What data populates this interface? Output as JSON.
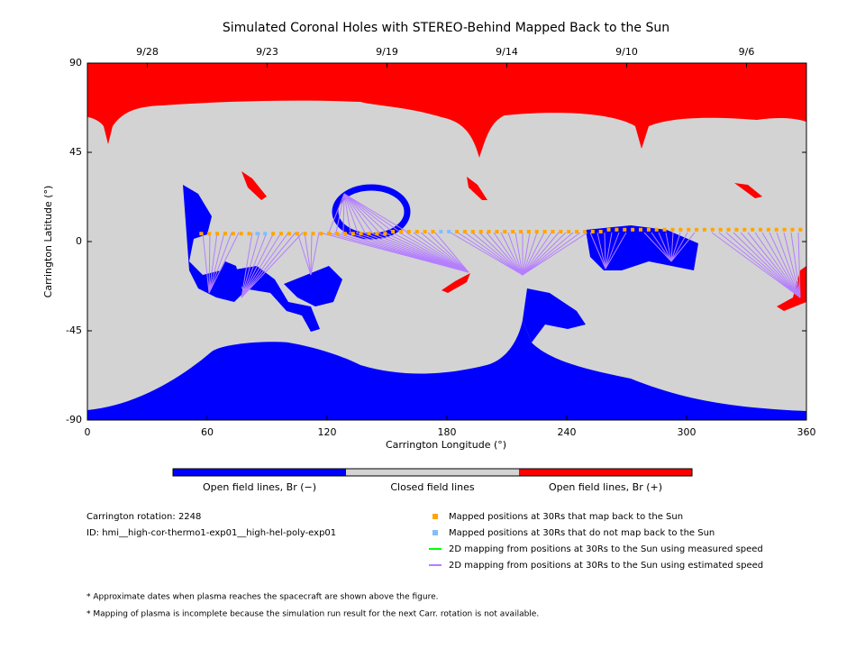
{
  "chart_data": {
    "type": "map",
    "title": "Simulated Coronal Holes with STEREO-Behind Mapped Back to the Sun",
    "xlabel": "Carrington Longitude (°)",
    "ylabel": "Carrington Latitude (°)",
    "xlim": [
      0,
      360
    ],
    "ylim": [
      -90,
      90
    ],
    "xticks": [
      0,
      60,
      120,
      180,
      240,
      300,
      360
    ],
    "yticks": [
      -90,
      -45,
      0,
      45,
      90
    ],
    "top_ticks": [
      {
        "value": 30,
        "label": "9/28"
      },
      {
        "value": 90,
        "label": "9/23"
      },
      {
        "value": 150,
        "label": "9/19"
      },
      {
        "value": 210,
        "label": "9/14"
      },
      {
        "value": 270,
        "label": "9/10"
      },
      {
        "value": 330,
        "label": "9/6"
      }
    ],
    "series": [
      {
        "name": "Mapped positions at 30Rs that map back to the Sun",
        "color": "#ffa500",
        "x": [
          57,
          61,
          65,
          69,
          73,
          77,
          81,
          93,
          97,
          101,
          105,
          109,
          113,
          117,
          121,
          125,
          129,
          133,
          137,
          141,
          145,
          149,
          153,
          157,
          161,
          165,
          169,
          173,
          185,
          189,
          193,
          197,
          201,
          205,
          209,
          213,
          217,
          221,
          225,
          229,
          233,
          237,
          241,
          245,
          249,
          253,
          257,
          261,
          265,
          269,
          273,
          277,
          281,
          285,
          289,
          293,
          297,
          301,
          305,
          309,
          313,
          317,
          321,
          325,
          329,
          333,
          337,
          341,
          345,
          349,
          353,
          357
        ],
        "values": [
          4,
          4,
          4,
          4,
          4,
          4,
          4,
          4,
          4,
          4,
          4,
          4,
          4,
          4,
          4,
          4,
          4,
          4,
          4,
          4,
          4,
          4,
          5,
          5,
          5,
          5,
          5,
          5,
          5,
          5,
          5,
          5,
          5,
          5,
          5,
          5,
          5,
          5,
          5,
          5,
          5,
          5,
          5,
          5,
          5,
          5,
          5,
          6,
          6,
          6,
          6,
          6,
          6,
          6,
          6,
          6,
          6,
          6,
          6,
          6,
          6,
          6,
          6,
          6,
          6,
          6,
          6,
          6,
          6,
          6,
          6,
          6
        ]
      },
      {
        "name": "Mapped positions at 30Rs that do not map back to the Sun",
        "color": "#7fbfff",
        "x": [
          85,
          89,
          177,
          181
        ],
        "values": [
          4,
          4,
          5,
          5
        ]
      },
      {
        "name": "2D mapping from positions at 30Rs to the Sun using measured speed",
        "color": "#00ff00"
      },
      {
        "name": "2D mapping from positions at 30Rs to the Sun using estimated speed",
        "color": "#b47fff"
      }
    ],
    "colorbar": {
      "labels": [
        "Open field lines, Br (−)",
        "Closed field lines",
        "Open field lines, Br (+)"
      ],
      "colors": [
        "#0000ff",
        "#d3d3d3",
        "#ff0000"
      ]
    },
    "info": [
      "Carrington rotation: 2248",
      "ID: hmi__high-cor-thermo1-exp01__high-hel-poly-exp01"
    ],
    "notes": [
      "* Approximate dates when plasma reaches the spacecraft are shown above the figure.",
      "* Mapping of plasma is incomplete because the simulation run result for the next Carr. rotation is not available."
    ]
  }
}
